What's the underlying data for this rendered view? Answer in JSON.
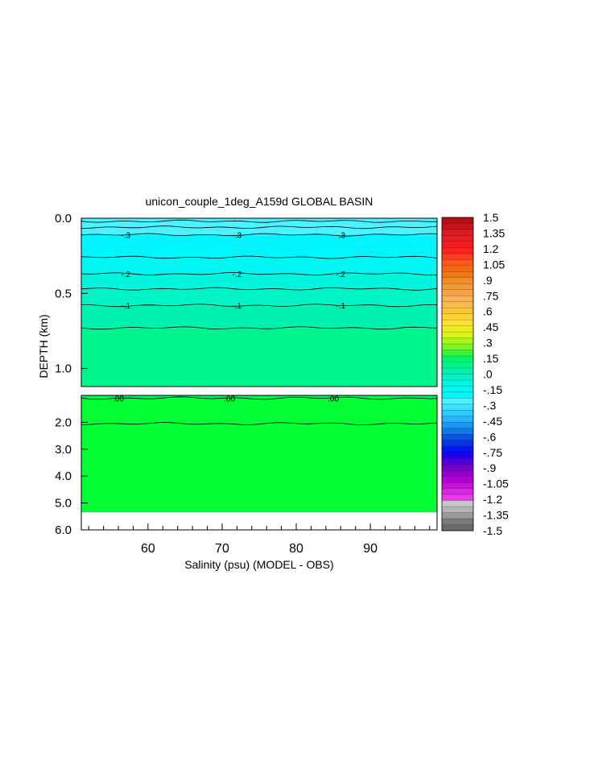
{
  "chart_data": {
    "type": "contour",
    "title": "unicon_couple_1deg_A159d GLOBAL BASIN",
    "xlabel": "Salinity (psu) (MODEL - OBS)",
    "ylabel": "DEPTH (km)",
    "x_ticks": [
      "60",
      "70",
      "80",
      "90"
    ],
    "x_tick_values": [
      60,
      70,
      80,
      90
    ],
    "xlim": [
      51,
      99
    ],
    "grid": false,
    "legend": "colorbar-right",
    "panels": [
      {
        "name": "upper",
        "ylim": [
          0.0,
          1.12
        ],
        "y_ticks": [
          "0.0",
          "0.5",
          "1.0"
        ],
        "y_tick_values": [
          0.0,
          0.5,
          1.0
        ],
        "bands": [
          {
            "from": 0.0,
            "to": 0.11,
            "value": -0.35,
            "color": "#4cf3ff"
          },
          {
            "from": 0.11,
            "to": 0.26,
            "value": -0.3,
            "color": "#00f6ff"
          },
          {
            "from": 0.26,
            "to": 0.37,
            "value": -0.25,
            "color": "#00f5f3"
          },
          {
            "from": 0.37,
            "to": 0.47,
            "value": -0.2,
            "color": "#00f6dc"
          },
          {
            "from": 0.47,
            "to": 0.58,
            "value": -0.15,
            "color": "#00f4c6"
          },
          {
            "from": 0.58,
            "to": 0.73,
            "value": -0.1,
            "color": "#00f0b0"
          },
          {
            "from": 0.73,
            "to": 1.12,
            "value": -0.05,
            "color": "#00f48e"
          }
        ],
        "contours": [
          {
            "depth": 0.02,
            "label": ""
          },
          {
            "depth": 0.06,
            "label": ""
          },
          {
            "depth": 0.11,
            "label": ".3",
            "label_text": "-.3"
          },
          {
            "depth": 0.26,
            "label": ""
          },
          {
            "depth": 0.37,
            "label": ".2",
            "label_text": "-.2"
          },
          {
            "depth": 0.47,
            "label": ""
          },
          {
            "depth": 0.58,
            "label": ".1",
            "label_text": "-.1"
          },
          {
            "depth": 0.73,
            "label": ""
          }
        ],
        "label_x": [
          57,
          72,
          86
        ]
      },
      {
        "name": "lower",
        "ylim": [
          1.0,
          6.0
        ],
        "y_ticks": [
          "2.0",
          "3.0",
          "4.0",
          "5.0",
          "6.0"
        ],
        "y_tick_values": [
          2.0,
          3.0,
          4.0,
          5.0,
          6.0
        ],
        "bands": [
          {
            "from": 1.0,
            "to": 1.1,
            "value": 0.0,
            "color": "#00f46a"
          },
          {
            "from": 1.1,
            "to": 5.35,
            "value": 0.05,
            "color": "#00ff33"
          }
        ],
        "contours": [
          {
            "depth": 1.1,
            "label": ".00",
            "label_text": ".00"
          },
          {
            "depth": 2.05,
            "label": ""
          }
        ],
        "label_x": [
          56,
          71,
          85
        ],
        "bottom_no_data_from": 5.35
      }
    ],
    "colorbar": {
      "labels": [
        "1.5",
        "1.35",
        "1.2",
        "1.05",
        ".9",
        ".75",
        ".6",
        ".45",
        ".3",
        ".15",
        ".0",
        "-.15",
        "-.3",
        "-.45",
        "-.6",
        "-.75",
        "-.9",
        "-1.05",
        "-1.2",
        "-1.35",
        "-1.5"
      ],
      "values": [
        1.5,
        1.35,
        1.2,
        1.05,
        0.9,
        0.75,
        0.6,
        0.45,
        0.3,
        0.15,
        0.0,
        -0.15,
        -0.3,
        -0.45,
        -0.6,
        -0.75,
        -0.9,
        -1.05,
        -1.2,
        -1.35,
        -1.5
      ],
      "colors": [
        "#b40f14",
        "#c8141c",
        "#dc1a22",
        "#e81c24",
        "#f21e22",
        "#ff2020",
        "#ff3a1e",
        "#ff5a1c",
        "#f26a18",
        "#f07a1a",
        "#f28c24",
        "#f29a34",
        "#f4a44a",
        "#f7b258",
        "#f9bc4a",
        "#fcc638",
        "#fcd432",
        "#fce036",
        "#f0ec1c",
        "#dcf41a",
        "#a8f41c",
        "#78f624",
        "#3cf430",
        "#00f46a",
        "#00f48e",
        "#00f0b0",
        "#00f4c6",
        "#00f6dc",
        "#00f5f3",
        "#00f6ff",
        "#4cf3ff",
        "#3ce0ff",
        "#2ccaff",
        "#22b4ff",
        "#1898f2",
        "#1478e2",
        "#0c52e0",
        "#0634e4",
        "#0016f0",
        "#2200e8",
        "#5000d8",
        "#7400d0",
        "#9400cc",
        "#b000d0",
        "#c810d8",
        "#dc24e4",
        "#e83cec",
        "#c8c8c8",
        "#b4b4b4",
        "#9a9a9a",
        "#7a7a7a",
        "#6a6a6a"
      ]
    }
  }
}
